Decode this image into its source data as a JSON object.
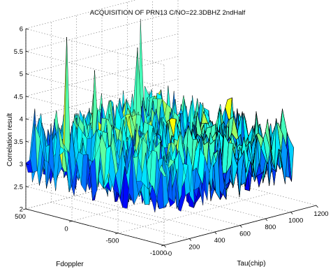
{
  "chart_data": {
    "type": "surface",
    "title": "ACQUISITION OF PRN13 C/NO=22.3DBHZ  2ndHalf",
    "xlabel": "Tau(chip)",
    "ylabel": "Fdoppler",
    "zlabel": "Correlation result",
    "xlim": [
      0,
      1200
    ],
    "ylim": [
      -1000,
      500
    ],
    "zlim": [
      2,
      6
    ],
    "x_ticks": [
      "-0",
      "200",
      "400",
      "600",
      "800",
      "1000",
      "1200"
    ],
    "y_ticks": [
      "500",
      "0",
      "-500",
      "-1000"
    ],
    "z_ticks": [
      "2",
      "2.5",
      "3",
      "3.5",
      "4",
      "4.5",
      "5",
      "5.5",
      "6"
    ],
    "x_range_data": [
      0,
      1023
    ],
    "y_range_data": [
      -1000,
      500
    ],
    "baseline_level": 3.3,
    "noise_min": 2.55,
    "noise_max": 4.9,
    "peaks": [
      {
        "x": 60,
        "y": 150,
        "z": 5.95
      },
      {
        "x": 700,
        "y": 250,
        "z": 5.2
      },
      {
        "x": 900,
        "y": 500,
        "z": 5.55
      },
      {
        "x": 330,
        "y": 200,
        "z": 5.0
      }
    ],
    "colormap": "jet",
    "grid": true
  }
}
